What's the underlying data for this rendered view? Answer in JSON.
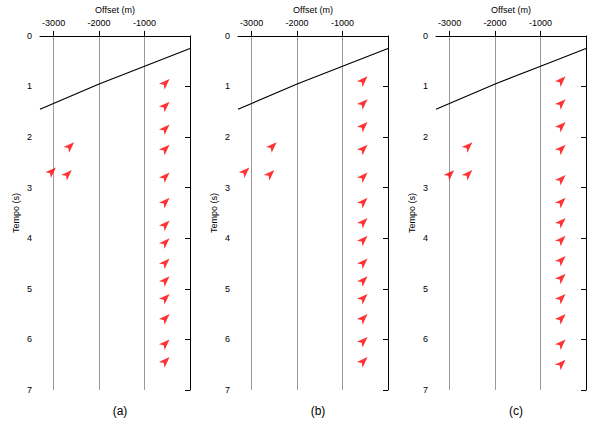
{
  "chart_data": [
    {
      "type": "scatter",
      "title": "(a)",
      "x_label": "Offset (m)",
      "y_label": "Tempo (s)",
      "xlim": [
        -3300,
        0
      ],
      "xticks": [
        -3000,
        -2000,
        -1000
      ],
      "ylim": [
        7,
        0
      ],
      "yticks": [
        0,
        1,
        2,
        3,
        4,
        5,
        6,
        7
      ],
      "grid": true,
      "series": [
        {
          "type": "line",
          "color": "#000000",
          "line_style": "solid",
          "values": [
            [
              -3300,
              1.45
            ],
            [
              -2000,
              0.95
            ],
            [
              -1000,
              0.6
            ],
            [
              0,
              0.25
            ]
          ]
        },
        {
          "type": "scatter",
          "color": "#ff0000",
          "marker": "arrow",
          "values": [
            [
              -450,
              0.85
            ],
            [
              -450,
              1.3
            ],
            [
              -450,
              1.75
            ],
            [
              -450,
              2.15
            ],
            [
              -450,
              2.7
            ],
            [
              -450,
              3.2
            ],
            [
              -450,
              3.65
            ],
            [
              -450,
              4.0
            ],
            [
              -450,
              4.4
            ],
            [
              -450,
              4.75
            ],
            [
              -450,
              5.1
            ],
            [
              -450,
              5.5
            ],
            [
              -450,
              6.0
            ],
            [
              -450,
              6.35
            ],
            [
              -2950,
              2.6
            ],
            [
              -2550,
              2.1
            ],
            [
              -2600,
              2.65
            ]
          ]
        }
      ]
    },
    {
      "type": "scatter",
      "title": "(b)",
      "x_label": "Offset (m)",
      "y_label": "Tempo (s)",
      "xlim": [
        -3300,
        0
      ],
      "xticks": [
        -3000,
        -2000,
        -1000
      ],
      "ylim": [
        7,
        0
      ],
      "yticks": [
        0,
        1,
        2,
        3,
        4,
        5,
        6,
        7
      ],
      "grid": true,
      "series": [
        {
          "type": "line",
          "color": "#000000",
          "line_style": "solid",
          "values": [
            [
              -3300,
              1.45
            ],
            [
              -2000,
              0.95
            ],
            [
              -1000,
              0.6
            ],
            [
              0,
              0.25
            ]
          ]
        },
        {
          "type": "scatter",
          "color": "#ff0000",
          "marker": "arrow",
          "values": [
            [
              -450,
              0.8
            ],
            [
              -450,
              1.25
            ],
            [
              -450,
              1.7
            ],
            [
              -450,
              2.15
            ],
            [
              -450,
              2.7
            ],
            [
              -450,
              3.2
            ],
            [
              -450,
              3.6
            ],
            [
              -450,
              3.95
            ],
            [
              -450,
              4.4
            ],
            [
              -450,
              4.75
            ],
            [
              -450,
              5.1
            ],
            [
              -450,
              5.5
            ],
            [
              -450,
              5.95
            ],
            [
              -450,
              6.35
            ],
            [
              -3050,
              2.6
            ],
            [
              -2450,
              2.1
            ],
            [
              -2500,
              2.65
            ]
          ]
        }
      ]
    },
    {
      "type": "scatter",
      "title": "(c)",
      "x_label": "Offset (m)",
      "y_label": "Tempo (s)",
      "xlim": [
        -3300,
        0
      ],
      "xticks": [
        -3000,
        -2000,
        -1000
      ],
      "ylim": [
        7,
        0
      ],
      "yticks": [
        0,
        1,
        2,
        3,
        4,
        5,
        6,
        7
      ],
      "grid": true,
      "series": [
        {
          "type": "line",
          "color": "#000000",
          "line_style": "solid",
          "values": [
            [
              -3300,
              1.45
            ],
            [
              -2000,
              0.95
            ],
            [
              -1000,
              0.6
            ],
            [
              0,
              0.25
            ]
          ]
        },
        {
          "type": "scatter",
          "color": "#ff0000",
          "marker": "arrow",
          "values": [
            [
              -450,
              0.8
            ],
            [
              -450,
              1.25
            ],
            [
              -450,
              1.7
            ],
            [
              -450,
              2.15
            ],
            [
              -450,
              2.75
            ],
            [
              -450,
              3.2
            ],
            [
              -450,
              3.6
            ],
            [
              -450,
              3.95
            ],
            [
              -450,
              4.35
            ],
            [
              -450,
              4.7
            ],
            [
              -450,
              5.1
            ],
            [
              -450,
              5.5
            ],
            [
              -450,
              6.0
            ],
            [
              -450,
              6.4
            ],
            [
              -2900,
              2.65
            ],
            [
              -2500,
              2.1
            ],
            [
              -2500,
              2.65
            ]
          ]
        }
      ]
    }
  ]
}
